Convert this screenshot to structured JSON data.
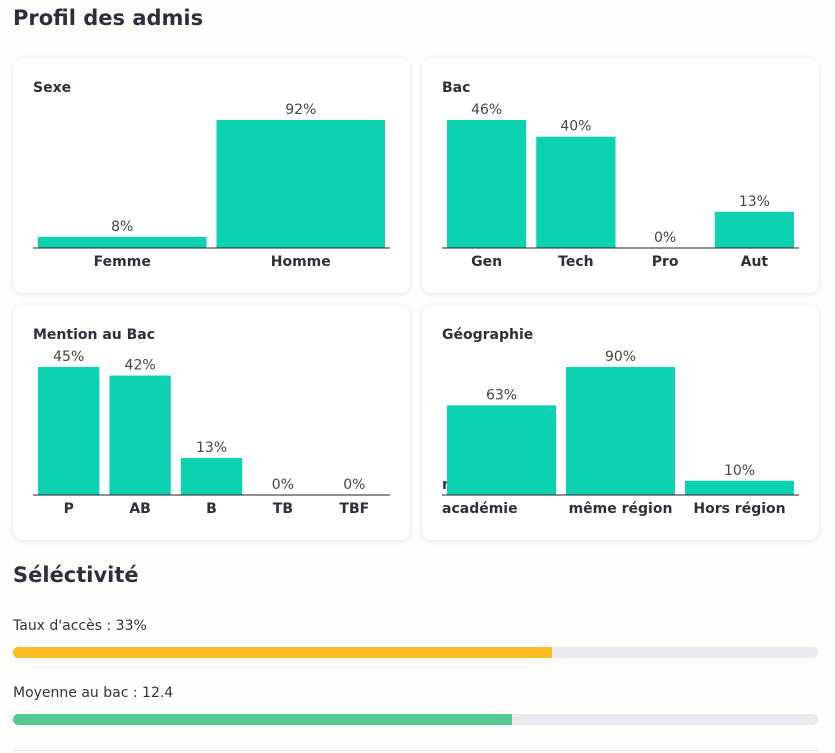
{
  "title": "Profil des admis",
  "chart_data": [
    {
      "type": "bar",
      "title": "Sexe",
      "categories": [
        "Femme",
        "Homme"
      ],
      "values": [
        8,
        92
      ],
      "value_labels": [
        "8%",
        "92%"
      ],
      "color": "#0cd2b2"
    },
    {
      "type": "bar",
      "title": "Bac",
      "categories": [
        "Gen",
        "Tech",
        "Pro",
        "Aut"
      ],
      "values": [
        46,
        40,
        0,
        13
      ],
      "value_labels": [
        "46%",
        "40%",
        "0%",
        "13%"
      ],
      "color": "#0cd2b2"
    },
    {
      "type": "bar",
      "title": "Mention au Bac",
      "categories": [
        "P",
        "AB",
        "B",
        "TB",
        "TBF"
      ],
      "values": [
        45,
        42,
        13,
        0,
        0
      ],
      "value_labels": [
        "45%",
        "42%",
        "13%",
        "0%",
        "0%"
      ],
      "color": "#0cd2b2"
    },
    {
      "type": "bar",
      "title": "Géographie",
      "categories": [
        "même académie",
        "même région",
        "Hors région"
      ],
      "values": [
        63,
        90,
        10
      ],
      "value_labels": [
        "63%",
        "90%",
        "10%"
      ],
      "color": "#0cd2b2"
    }
  ],
  "selectivity": {
    "title": "Séléctivité",
    "bars": [
      {
        "label": "Taux d'accès : 33%",
        "fill": 67,
        "range": [
          0,
          100
        ],
        "color": "#fbbc24"
      },
      {
        "label": "Moyenne au bac : 12.4",
        "fill": 12.4,
        "range": [
          0,
          20
        ],
        "color": "#55c98f"
      }
    ]
  }
}
